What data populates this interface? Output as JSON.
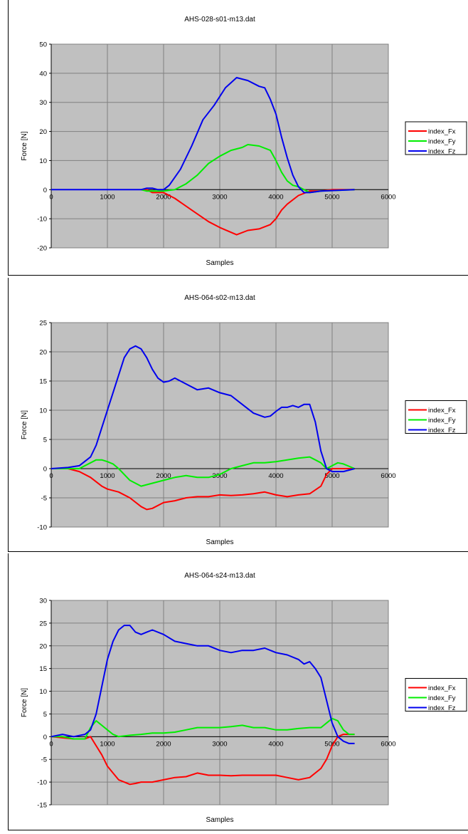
{
  "charts": [
    {
      "title": "AHS-028-s01-m13.dat",
      "xlabel": "Samples",
      "ylabel": "Force [N]",
      "xlim": [
        0,
        6000
      ],
      "ylim": [
        -20,
        50
      ],
      "xticks": [
        0,
        1000,
        2000,
        3000,
        4000,
        5000,
        6000
      ],
      "yticks": [
        -20,
        -10,
        0,
        10,
        20,
        30,
        40,
        50
      ],
      "legend": [
        "index_Fx",
        "index_Fy",
        "index_Fz"
      ]
    },
    {
      "title": "AHS-064-s02-m13.dat",
      "xlabel": "Samples",
      "ylabel": "Force [N]",
      "xlim": [
        0,
        6000
      ],
      "ylim": [
        -10,
        25
      ],
      "xticks": [
        0,
        1000,
        2000,
        3000,
        4000,
        5000,
        6000
      ],
      "yticks": [
        -10,
        -5,
        0,
        5,
        10,
        15,
        20,
        25
      ],
      "legend": [
        "index_Fx",
        "index_Fy",
        "index_Fz"
      ]
    },
    {
      "title": "AHS-064-s24-m13.dat",
      "xlabel": "Samples",
      "ylabel": "Force [N]",
      "xlim": [
        0,
        6000
      ],
      "ylim": [
        -15,
        30
      ],
      "xticks": [
        0,
        1000,
        2000,
        3000,
        4000,
        5000,
        6000
      ],
      "yticks": [
        -15,
        -10,
        -5,
        0,
        5,
        10,
        15,
        20,
        25,
        30
      ],
      "legend": [
        "index_Fx",
        "index_Fy",
        "index_Fz"
      ]
    }
  ],
  "chart_data": [
    {
      "type": "line",
      "title": "AHS-028-s01-m13.dat",
      "xlabel": "Samples",
      "ylabel": "Force [N]",
      "xlim": [
        0,
        6000
      ],
      "ylim": [
        -20,
        50
      ],
      "grid": true,
      "legend_position": "right",
      "series": [
        {
          "name": "index_Fx",
          "color": "#ff0000",
          "x": [
            1600,
            1700,
            1800,
            2000,
            2200,
            2500,
            2800,
            3000,
            3300,
            3500,
            3700,
            3900,
            4000,
            4100,
            4200,
            4400,
            4600,
            4800,
            5000,
            5400
          ],
          "y": [
            0,
            0,
            -1,
            -1,
            -3,
            -7,
            -11,
            -13,
            -15.5,
            -14,
            -13.5,
            -12,
            -10,
            -7,
            -5,
            -2,
            -0.5,
            -0.5,
            0,
            0
          ]
        },
        {
          "name": "index_Fy",
          "color": "#00ee00",
          "x": [
            1600,
            1700,
            1800,
            2000,
            2200,
            2400,
            2600,
            2800,
            3000,
            3200,
            3400,
            3500,
            3700,
            3900,
            4000,
            4100,
            4200,
            4300,
            4400,
            4600,
            4800,
            5400
          ],
          "y": [
            0,
            -0.5,
            -0.5,
            -0.5,
            0,
            2,
            5,
            9,
            11.5,
            13.5,
            14.5,
            15.5,
            15,
            13.5,
            10,
            6,
            3,
            1.5,
            1,
            -1,
            -0.5,
            0
          ]
        },
        {
          "name": "index_Fz",
          "color": "#0000ee",
          "x": [
            0,
            1000,
            1600,
            1700,
            1800,
            1900,
            2000,
            2100,
            2300,
            2500,
            2700,
            2900,
            3100,
            3300,
            3500,
            3700,
            3800,
            3900,
            4000,
            4100,
            4200,
            4300,
            4400,
            4500,
            4600,
            4800,
            5400
          ],
          "y": [
            0,
            0,
            0,
            0.5,
            0.5,
            0,
            0,
            1.5,
            7,
            15,
            24,
            29,
            35,
            38.5,
            37.5,
            35.5,
            35,
            31,
            26,
            18,
            11,
            5,
            1,
            -1,
            -1,
            -0.5,
            0
          ]
        }
      ]
    },
    {
      "type": "line",
      "title": "AHS-064-s02-m13.dat",
      "xlabel": "Samples",
      "ylabel": "Force [N]",
      "xlim": [
        0,
        6000
      ],
      "ylim": [
        -10,
        25
      ],
      "grid": true,
      "legend_position": "right",
      "series": [
        {
          "name": "index_Fx",
          "color": "#ff0000",
          "x": [
            0,
            300,
            500,
            700,
            900,
            1000,
            1200,
            1400,
            1600,
            1700,
            1800,
            2000,
            2200,
            2400,
            2600,
            2800,
            3000,
            3200,
            3400,
            3600,
            3800,
            4000,
            4200,
            4400,
            4600,
            4800,
            4900,
            5000,
            5400
          ],
          "y": [
            0,
            0,
            -0.5,
            -1.5,
            -3,
            -3.5,
            -4,
            -5,
            -6.5,
            -7,
            -6.8,
            -5.8,
            -5.5,
            -5,
            -4.8,
            -4.8,
            -4.5,
            -4.6,
            -4.5,
            -4.3,
            -4,
            -4.5,
            -4.8,
            -4.5,
            -4.3,
            -3,
            -1,
            0,
            0
          ]
        },
        {
          "name": "index_Fy",
          "color": "#00ee00",
          "x": [
            0,
            300,
            500,
            700,
            800,
            900,
            1000,
            1100,
            1200,
            1400,
            1600,
            1800,
            2000,
            2200,
            2400,
            2600,
            2800,
            3000,
            3200,
            3400,
            3600,
            3800,
            4000,
            4200,
            4400,
            4600,
            4700,
            4800,
            4900,
            5000,
            5100,
            5200,
            5400
          ],
          "y": [
            0,
            0,
            0,
            1,
            1.5,
            1.5,
            1.2,
            0.8,
            0,
            -2,
            -3,
            -2.5,
            -2,
            -1.5,
            -1.2,
            -1.5,
            -1.5,
            -1,
            0,
            0.5,
            1,
            1,
            1.2,
            1.5,
            1.8,
            2,
            1.5,
            1,
            0,
            0.5,
            1,
            0.8,
            0
          ]
        },
        {
          "name": "index_Fz",
          "color": "#0000ee",
          "x": [
            0,
            300,
            500,
            700,
            800,
            900,
            1000,
            1100,
            1200,
            1300,
            1400,
            1500,
            1600,
            1700,
            1800,
            1900,
            2000,
            2100,
            2200,
            2300,
            2400,
            2600,
            2800,
            3000,
            3200,
            3400,
            3600,
            3800,
            3900,
            4000,
            4100,
            4200,
            4300,
            4400,
            4500,
            4600,
            4700,
            4800,
            4900,
            5000,
            5200,
            5400
          ],
          "y": [
            0,
            0.2,
            0.5,
            2,
            4,
            7,
            10,
            13,
            16,
            19,
            20.5,
            21,
            20.5,
            19,
            17,
            15.5,
            14.8,
            15,
            15.5,
            15,
            14.5,
            13.5,
            13.8,
            13,
            12.5,
            11,
            9.5,
            8.8,
            9,
            9.8,
            10.5,
            10.5,
            10.8,
            10.5,
            11,
            11,
            8,
            3,
            0,
            -0.5,
            -0.5,
            0
          ]
        }
      ]
    },
    {
      "type": "line",
      "title": "AHS-064-s24-m13.dat",
      "xlabel": "Samples",
      "ylabel": "Force [N]",
      "xlim": [
        0,
        6000
      ],
      "ylim": [
        -15,
        30
      ],
      "grid": true,
      "legend_position": "right",
      "series": [
        {
          "name": "index_Fx",
          "color": "#ff0000",
          "x": [
            0,
            400,
            600,
            700,
            800,
            900,
            1000,
            1100,
            1200,
            1300,
            1400,
            1500,
            1600,
            1800,
            2000,
            2200,
            2400,
            2600,
            2800,
            3000,
            3200,
            3400,
            3600,
            3800,
            4000,
            4200,
            4400,
            4600,
            4800,
            4900,
            5000,
            5100,
            5200,
            5300,
            5400
          ],
          "y": [
            0,
            -0.5,
            -0.5,
            0,
            -2,
            -4,
            -6.5,
            -8,
            -9.5,
            -10,
            -10.5,
            -10.3,
            -10,
            -10,
            -9.5,
            -9,
            -8.8,
            -8,
            -8.5,
            -8.5,
            -8.6,
            -8.5,
            -8.5,
            -8.5,
            -8.5,
            -9,
            -9.5,
            -9,
            -7,
            -5,
            -2,
            0,
            0.5,
            0.5,
            0.5
          ]
        },
        {
          "name": "index_Fy",
          "color": "#00ee00",
          "x": [
            0,
            200,
            400,
            600,
            700,
            800,
            900,
            1000,
            1100,
            1200,
            1400,
            1600,
            1800,
            2000,
            2200,
            2400,
            2600,
            2800,
            3000,
            3200,
            3400,
            3600,
            3800,
            4000,
            4200,
            4400,
            4600,
            4800,
            4900,
            5000,
            5100,
            5200,
            5300,
            5400
          ],
          "y": [
            0,
            0,
            -0.5,
            -0.5,
            2,
            3.5,
            2.5,
            1.5,
            0.5,
            0,
            0.3,
            0.5,
            0.8,
            0.8,
            1,
            1.5,
            2,
            2,
            2,
            2.2,
            2.5,
            2,
            2,
            1.5,
            1.5,
            1.8,
            2,
            2,
            3,
            4,
            3.5,
            1.5,
            0.5,
            0.5
          ]
        },
        {
          "name": "index_Fz",
          "color": "#0000ee",
          "x": [
            0,
            200,
            400,
            600,
            700,
            800,
            900,
            1000,
            1100,
            1200,
            1300,
            1400,
            1500,
            1600,
            1700,
            1800,
            2000,
            2200,
            2400,
            2600,
            2800,
            3000,
            3200,
            3400,
            3600,
            3800,
            4000,
            4200,
            4400,
            4500,
            4600,
            4700,
            4800,
            4900,
            5000,
            5100,
            5200,
            5300,
            5400
          ],
          "y": [
            0,
            0.5,
            0,
            0.5,
            1.5,
            5,
            11,
            17,
            21,
            23.5,
            24.5,
            24.5,
            23,
            22.5,
            23,
            23.5,
            22.5,
            21,
            20.5,
            20,
            20,
            19,
            18.5,
            19,
            19,
            19.5,
            18.5,
            18,
            17,
            16,
            16.5,
            15,
            13,
            8,
            3,
            0,
            -1,
            -1.5,
            -1.5
          ]
        }
      ]
    }
  ]
}
